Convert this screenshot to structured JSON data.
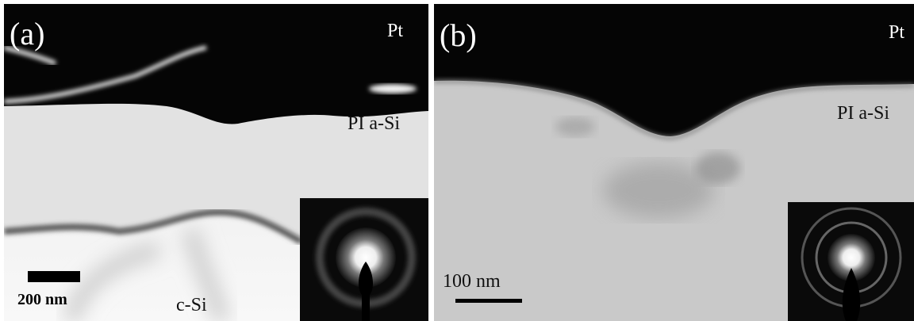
{
  "panels": [
    {
      "label": "(a)",
      "annotations": [
        "Pt",
        "PI a-Si",
        "c-Si"
      ],
      "scale_bar": "200 nm"
    },
    {
      "label": "(b)",
      "annotations": [
        "Pt",
        "PI a-Si"
      ],
      "scale_bar": "100 nm"
    }
  ]
}
